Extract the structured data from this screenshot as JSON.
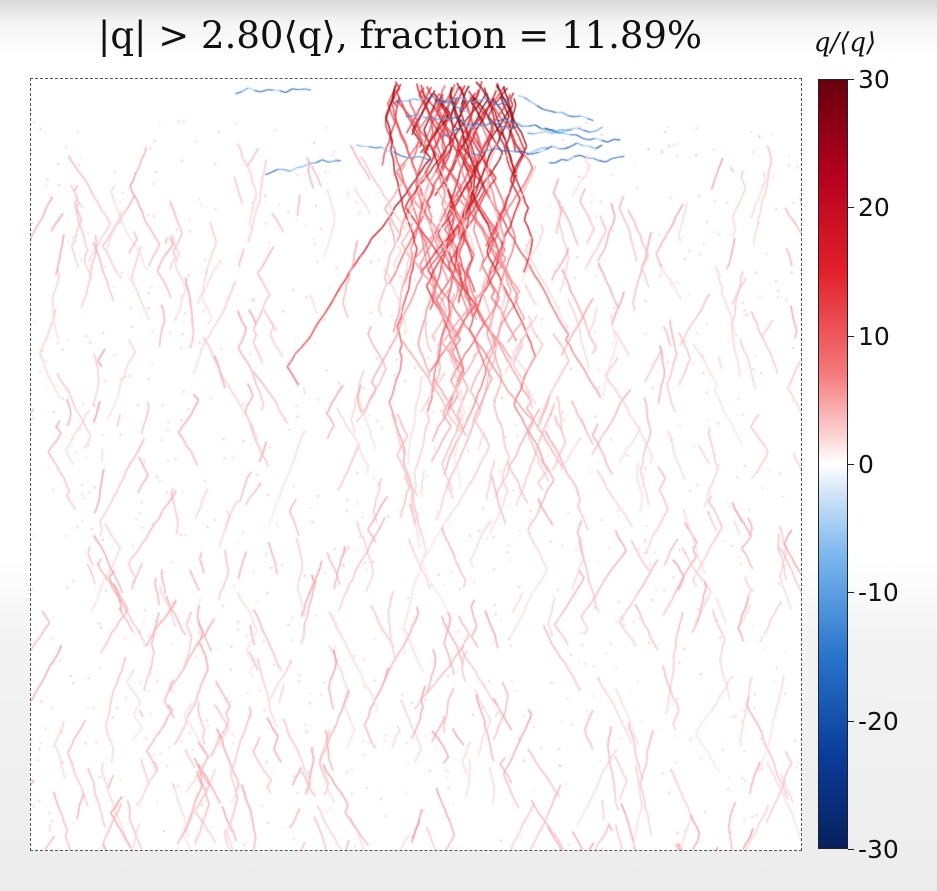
{
  "chart_data": {
    "type": "heatmap",
    "title": "|q| > 2.80⟨q⟩, fraction = 11.89%",
    "threshold": 2.8,
    "fraction_percent": 11.89,
    "colorbar": {
      "label": "q/⟨q⟩",
      "range": [
        -30,
        30
      ],
      "ticks": [
        "30",
        "20",
        "10",
        "0",
        "-10",
        "-20",
        "-30"
      ],
      "tick_values": [
        30,
        20,
        10,
        0,
        -10,
        -20,
        -30
      ],
      "colormap": "diverging blue-white-red"
    },
    "colors": {
      "positive_max": "#67000d",
      "positive_mid": "#e3202a",
      "positive_light": "#f4a0a4",
      "zero": "#ffffff",
      "negative_mid": "#2874cc",
      "negative_max": "#08205e"
    },
    "axes": {
      "xlabel": "",
      "ylabel": "",
      "grid": false,
      "frame": "dashed"
    },
    "pattern": "branching force chains radiating downward from a point load at the top center; strongest values (up to ~30) near the top, weaker red chains spreading across the packing; a few negative (blue) chains near the top"
  }
}
